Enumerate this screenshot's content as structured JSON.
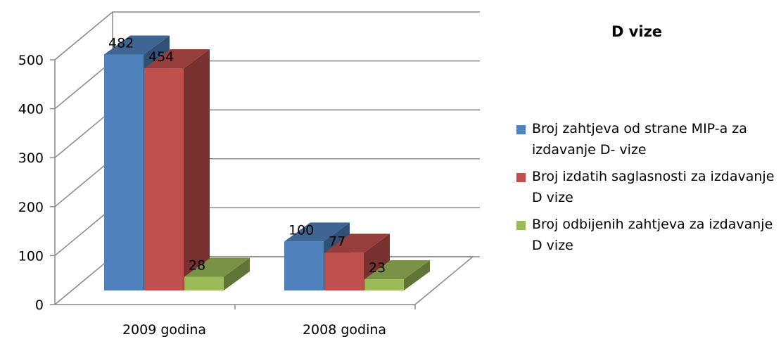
{
  "chart_data": {
    "type": "bar3d",
    "title": "D vize",
    "categories": [
      "2009 godina",
      "2008 godina"
    ],
    "series": [
      {
        "name": "Broj zahtjeva od strane MIP-a za izdavanje D- vize",
        "color": "#4f81bd",
        "values": [
          482,
          100
        ]
      },
      {
        "name": "Broj izdatih saglasnosti za izdavanje D vize",
        "color": "#c0504d",
        "values": [
          454,
          77
        ]
      },
      {
        "name": "Broj odbijenih zahtjeva za izdavanje D vize",
        "color": "#9bbb59",
        "values": [
          28,
          23
        ]
      }
    ],
    "ylim": [
      0,
      500
    ],
    "yticks": [
      0,
      100,
      200,
      300,
      400,
      500
    ],
    "grid": true,
    "legend": "right"
  }
}
